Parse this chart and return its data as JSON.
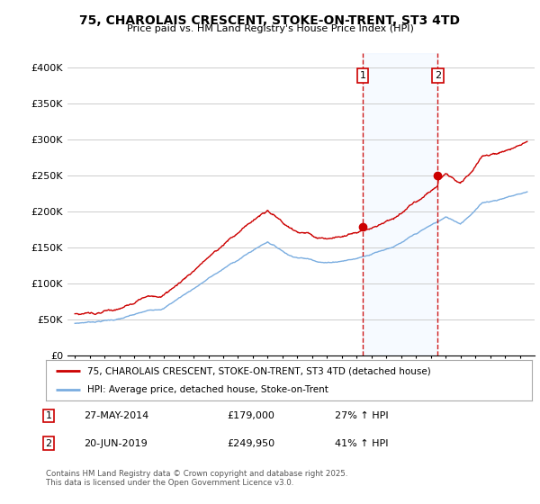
{
  "title": "75, CHAROLAIS CRESCENT, STOKE-ON-TRENT, ST3 4TD",
  "subtitle": "Price paid vs. HM Land Registry's House Price Index (HPI)",
  "ylim": [
    0,
    420000
  ],
  "yticks": [
    0,
    50000,
    100000,
    150000,
    200000,
    250000,
    300000,
    350000,
    400000
  ],
  "ytick_labels": [
    "£0",
    "£50K",
    "£100K",
    "£150K",
    "£200K",
    "£250K",
    "£300K",
    "£350K",
    "£400K"
  ],
  "legend_line1": "75, CHAROLAIS CRESCENT, STOKE-ON-TRENT, ST3 4TD (detached house)",
  "legend_line2": "HPI: Average price, detached house, Stoke-on-Trent",
  "purchase1_date": "27-MAY-2014",
  "purchase1_price": "£179,000",
  "purchase1_hpi": "27% ↑ HPI",
  "purchase2_date": "20-JUN-2019",
  "purchase2_price": "£249,950",
  "purchase2_hpi": "41% ↑ HPI",
  "purchase1_x": 2014.41,
  "purchase1_y": 179000,
  "purchase2_x": 2019.47,
  "purchase2_y": 249950,
  "vline1_x": 2014.41,
  "vline2_x": 2019.47,
  "red_color": "#cc0000",
  "blue_color": "#7aade0",
  "vline_color": "#cc0000",
  "bg_color": "#ffffff",
  "grid_color": "#cccccc",
  "highlight_bg": "#ddeeff",
  "footer_text": "Contains HM Land Registry data © Crown copyright and database right 2025.\nThis data is licensed under the Open Government Licence v3.0.",
  "xlim_left": 1994.5,
  "xlim_right": 2026.0
}
